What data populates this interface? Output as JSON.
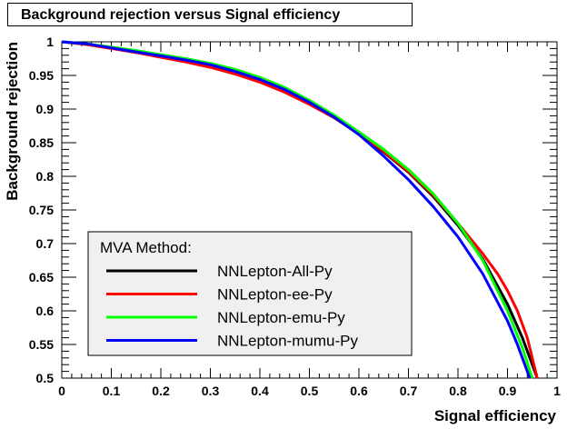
{
  "chart_data": {
    "type": "line",
    "title": "Background rejection versus Signal efficiency",
    "xlabel": "Signal efficiency",
    "ylabel": "Background rejection",
    "xlim": [
      0,
      1
    ],
    "ylim": [
      0.5,
      1
    ],
    "x_ticks": [
      "0",
      "0.1",
      "0.2",
      "0.3",
      "0.4",
      "0.5",
      "0.6",
      "0.7",
      "0.8",
      "0.9",
      "1"
    ],
    "y_ticks": [
      "0.5",
      "0.55",
      "0.6",
      "0.65",
      "0.7",
      "0.75",
      "0.8",
      "0.85",
      "0.9",
      "0.95",
      "1"
    ],
    "grid": false,
    "legend": {
      "title": "MVA Method:",
      "placement": "bottom-left"
    },
    "series": [
      {
        "name": "NNLepton-All-Py",
        "color": "#000000",
        "x": [
          0,
          0.05,
          0.1,
          0.15,
          0.2,
          0.25,
          0.3,
          0.35,
          0.4,
          0.45,
          0.5,
          0.55,
          0.6,
          0.65,
          0.7,
          0.75,
          0.8,
          0.85,
          0.9,
          0.93,
          0.95,
          0.96
        ],
        "y": [
          1.0,
          0.997,
          0.991,
          0.984,
          0.979,
          0.973,
          0.965,
          0.955,
          0.942,
          0.927,
          0.908,
          0.887,
          0.863,
          0.836,
          0.806,
          0.77,
          0.727,
          0.677,
          0.61,
          0.56,
          0.52,
          0.5
        ]
      },
      {
        "name": "NNLepton-ee-Py",
        "color": "#ff0000",
        "x": [
          0,
          0.05,
          0.1,
          0.15,
          0.2,
          0.25,
          0.3,
          0.35,
          0.4,
          0.45,
          0.5,
          0.55,
          0.6,
          0.65,
          0.7,
          0.75,
          0.8,
          0.85,
          0.88,
          0.9,
          0.92,
          0.94,
          0.96
        ],
        "y": [
          1.0,
          0.996,
          0.99,
          0.984,
          0.977,
          0.97,
          0.962,
          0.952,
          0.94,
          0.925,
          0.907,
          0.887,
          0.864,
          0.837,
          0.807,
          0.772,
          0.73,
          0.685,
          0.655,
          0.63,
          0.6,
          0.56,
          0.5
        ]
      },
      {
        "name": "NNLepton-emu-Py",
        "color": "#00ff00",
        "x": [
          0,
          0.05,
          0.1,
          0.15,
          0.2,
          0.25,
          0.3,
          0.35,
          0.4,
          0.45,
          0.5,
          0.55,
          0.6,
          0.65,
          0.7,
          0.75,
          0.8,
          0.85,
          0.9,
          0.93,
          0.95
        ],
        "y": [
          1.0,
          0.997,
          0.992,
          0.987,
          0.981,
          0.975,
          0.968,
          0.959,
          0.947,
          0.932,
          0.913,
          0.891,
          0.866,
          0.84,
          0.81,
          0.774,
          0.73,
          0.675,
          0.6,
          0.545,
          0.5
        ]
      },
      {
        "name": "NNLepton-mumu-Py",
        "color": "#0000ff",
        "x": [
          0,
          0.05,
          0.1,
          0.15,
          0.2,
          0.25,
          0.3,
          0.35,
          0.4,
          0.45,
          0.5,
          0.55,
          0.6,
          0.65,
          0.7,
          0.75,
          0.8,
          0.85,
          0.9,
          0.92,
          0.945
        ],
        "y": [
          1.0,
          0.997,
          0.991,
          0.985,
          0.979,
          0.973,
          0.966,
          0.956,
          0.944,
          0.929,
          0.91,
          0.888,
          0.862,
          0.83,
          0.795,
          0.755,
          0.71,
          0.655,
          0.585,
          0.55,
          0.5
        ]
      }
    ]
  }
}
